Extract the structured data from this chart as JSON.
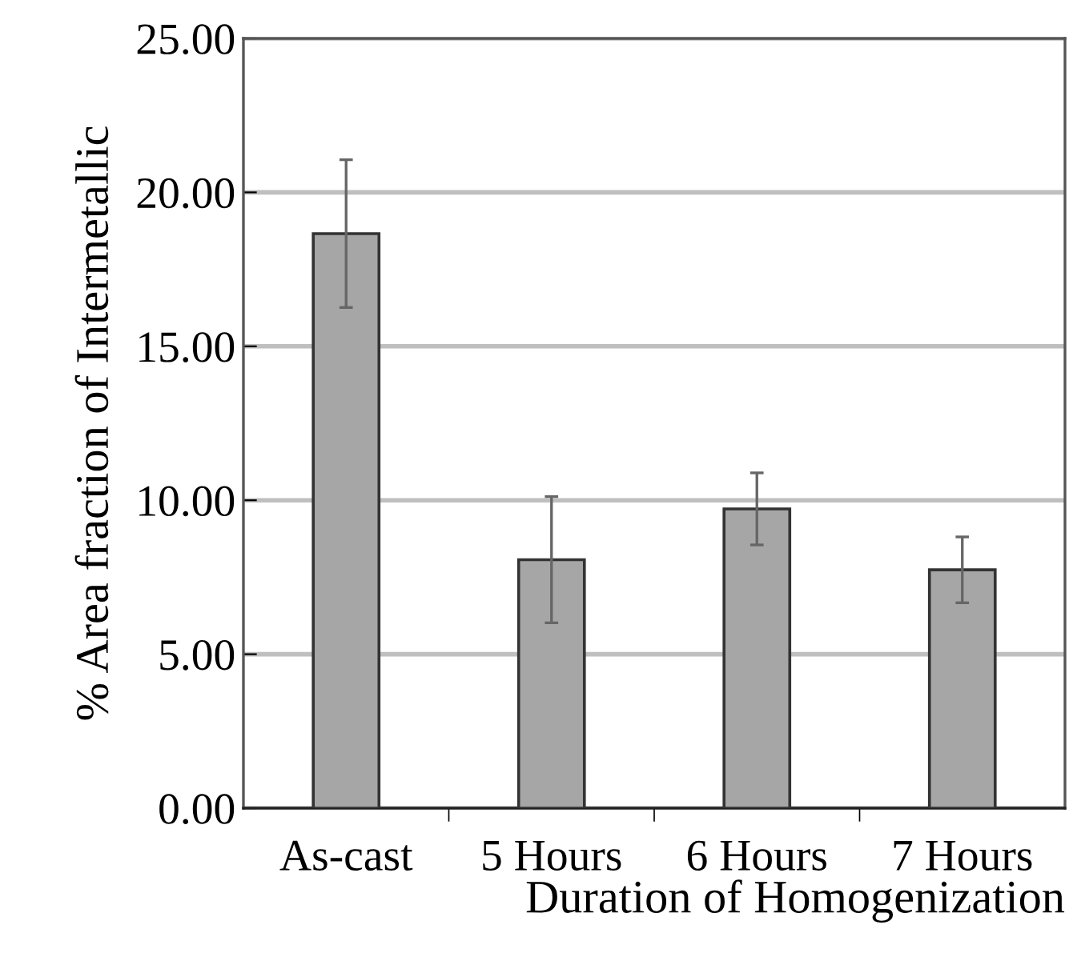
{
  "chart_data": {
    "type": "bar",
    "ylabel": "% Area fraction of Intermetallic",
    "xlabel": "Duration of Homogenization",
    "categories": [
      "As-cast",
      "5 Hours",
      "6 Hours",
      "7 Hours"
    ],
    "values": [
      18.66,
      8.07,
      9.72,
      7.74
    ],
    "errors": [
      2.4,
      2.05,
      1.17,
      1.07
    ],
    "color": "#a6a6a6",
    "ylim": [
      0,
      25
    ],
    "yticks": [
      {
        "value": 0,
        "label": "0.00"
      },
      {
        "value": 5,
        "label": "5.00"
      },
      {
        "value": 10,
        "label": "10.00"
      },
      {
        "value": 15,
        "label": "15.00"
      },
      {
        "value": 20,
        "label": "20.00"
      },
      {
        "value": 25,
        "label": "25.00"
      }
    ],
    "grid": "y",
    "legend": false
  }
}
